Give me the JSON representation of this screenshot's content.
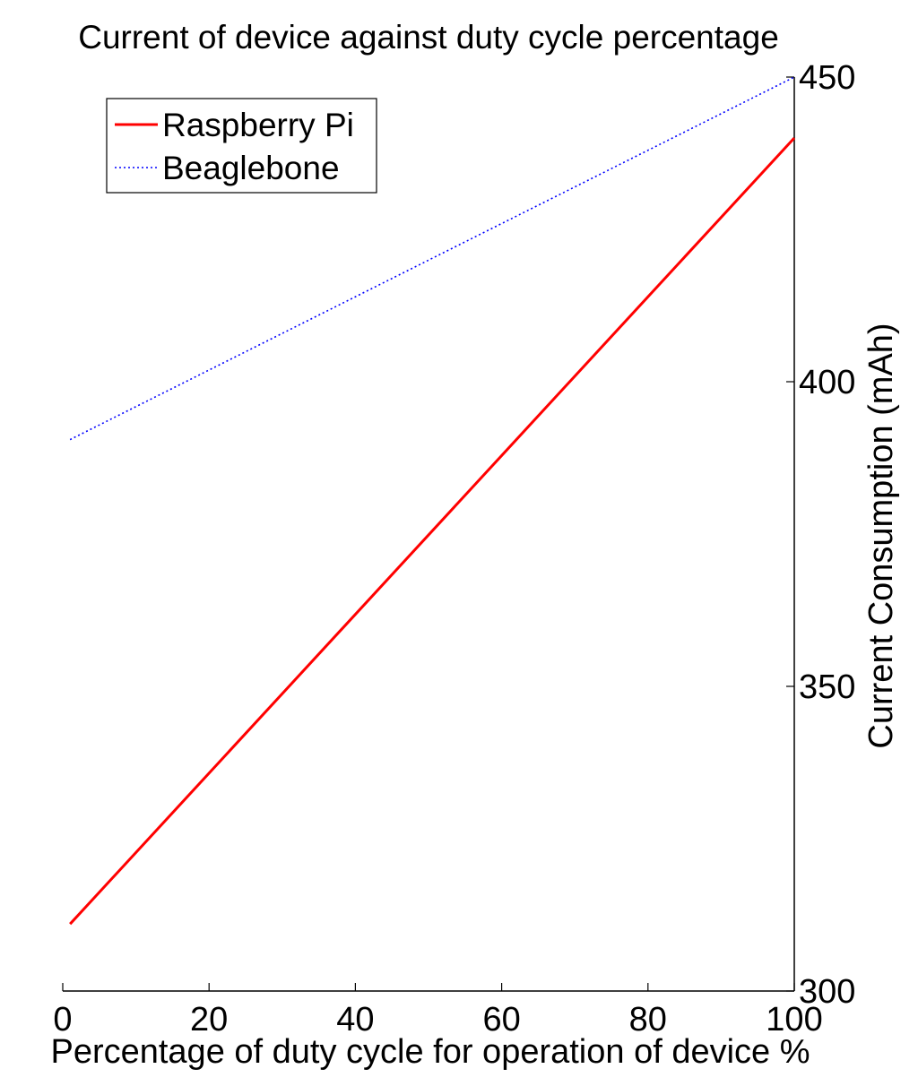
{
  "chart_data": {
    "type": "line",
    "title": "Current of device against duty cycle percentage",
    "xlabel": "Percentage of duty cycle for operation of device %",
    "ylabel": "Current Consumption (mAh)",
    "xlim": [
      0,
      100
    ],
    "ylim": [
      300,
      450
    ],
    "xticks": [
      0,
      20,
      40,
      60,
      80,
      100
    ],
    "yticks": [
      300,
      350,
      400,
      450
    ],
    "y_axis_position": "right",
    "grid": false,
    "legend_position": "top-left",
    "series": [
      {
        "name": "Raspberry Pi",
        "style": "solid",
        "color": "#ff0000",
        "x": [
          1,
          100
        ],
        "y": [
          311,
          440
        ]
      },
      {
        "name": "Beaglebone",
        "style": "dotted",
        "color": "#0000ff",
        "x": [
          1,
          100
        ],
        "y": [
          390.5,
          450
        ]
      }
    ]
  }
}
